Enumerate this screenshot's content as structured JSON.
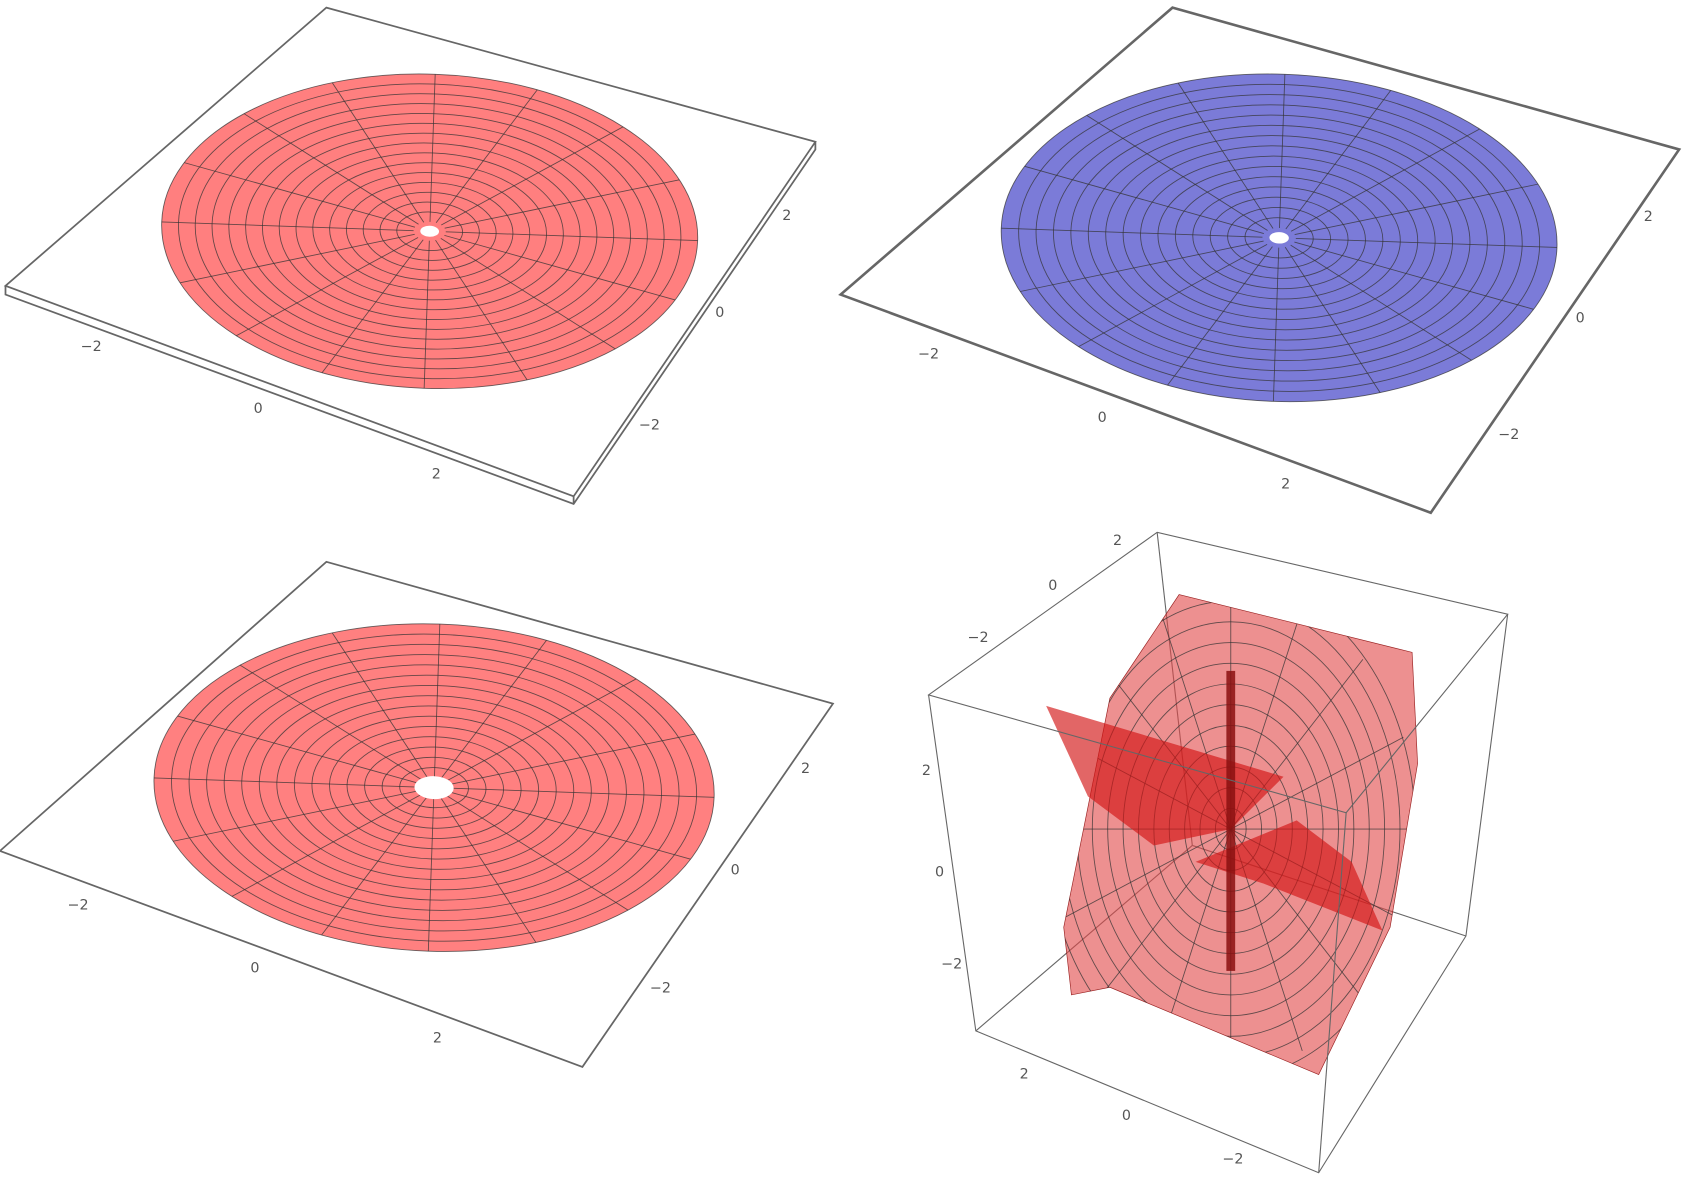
{
  "plots": [
    {
      "x_ticks": [
        "−2",
        "0",
        "2"
      ],
      "y_ticks": [
        "2",
        "0",
        "−2"
      ]
    },
    {
      "x_ticks": [
        "−2",
        "0",
        "2"
      ],
      "y_ticks": [
        "2",
        "0",
        "−2"
      ]
    },
    {
      "x_ticks": [
        "−2",
        "0",
        "2"
      ],
      "y_ticks": [
        "2",
        "0",
        "−2"
      ]
    },
    {
      "x_ticks": [
        "−2",
        "0",
        "2"
      ],
      "y_ticks": [
        "2",
        "0",
        "−2"
      ],
      "z_ticks": [
        "2",
        "0",
        "−2"
      ]
    }
  ]
}
